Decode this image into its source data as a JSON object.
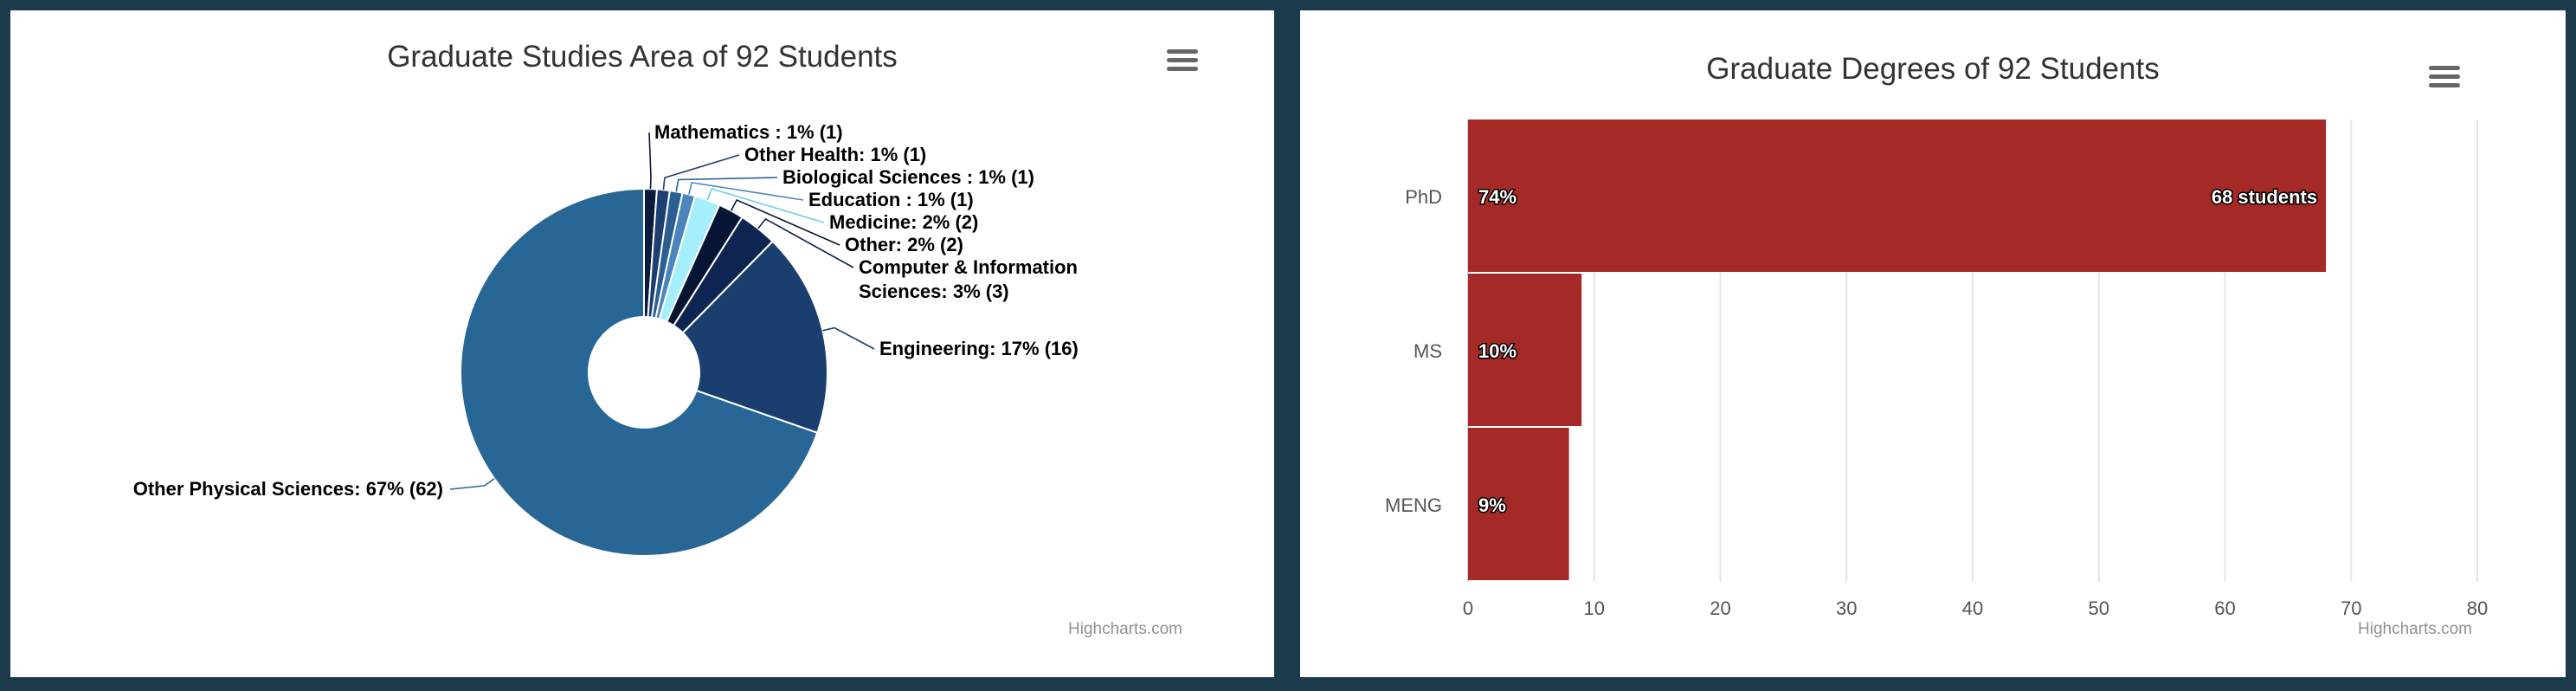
{
  "pie_panel": {
    "title": "Graduate Studies Area of 92 Students",
    "credits": "Highcharts.com"
  },
  "bar_panel": {
    "title": "Graduate Degrees of 92 Students",
    "credits": "Highcharts.com"
  },
  "chart_data": [
    {
      "type": "pie",
      "title": "Graduate Studies Area of 92 Students",
      "donut": true,
      "total": 92,
      "slices": [
        {
          "label": "Mathematics : 1% (1)",
          "value": 1,
          "color": "#0a1a3a"
        },
        {
          "label": "Other Health: 1% (1)",
          "value": 1,
          "color": "#1d3f73"
        },
        {
          "label": "Biological Sciences : 1% (1)",
          "value": 1,
          "color": "#2b5f93"
        },
        {
          "label": "Education : 1% (1)",
          "value": 1,
          "color": "#4a86bb"
        },
        {
          "label": "Medicine: 2% (2)",
          "value": 2,
          "color": "#a5eefb"
        },
        {
          "label": "Other: 2% (2)",
          "value": 2,
          "color": "#061533"
        },
        {
          "label": "Computer & Information Sciences: 3% (3)",
          "value": 3,
          "color": "#0d2550"
        },
        {
          "label": "Engineering: 17% (16)",
          "value": 16,
          "color": "#1a3f6f"
        },
        {
          "label": "Other Physical Sciences: 67% (62)",
          "value": 62,
          "color": "#286795"
        }
      ]
    },
    {
      "type": "bar",
      "orientation": "horizontal",
      "title": "Graduate Degrees of 92 Students",
      "categories": [
        "PhD",
        "MS",
        "MENG"
      ],
      "values": [
        68,
        9,
        8
      ],
      "percent_labels": [
        "74%",
        "10%",
        "9%"
      ],
      "end_label": "68 students",
      "xlim": [
        0,
        80
      ],
      "x_ticks": [
        0,
        10,
        20,
        30,
        40,
        50,
        60,
        70,
        80
      ],
      "color": "#a52a27",
      "grid": true
    }
  ]
}
